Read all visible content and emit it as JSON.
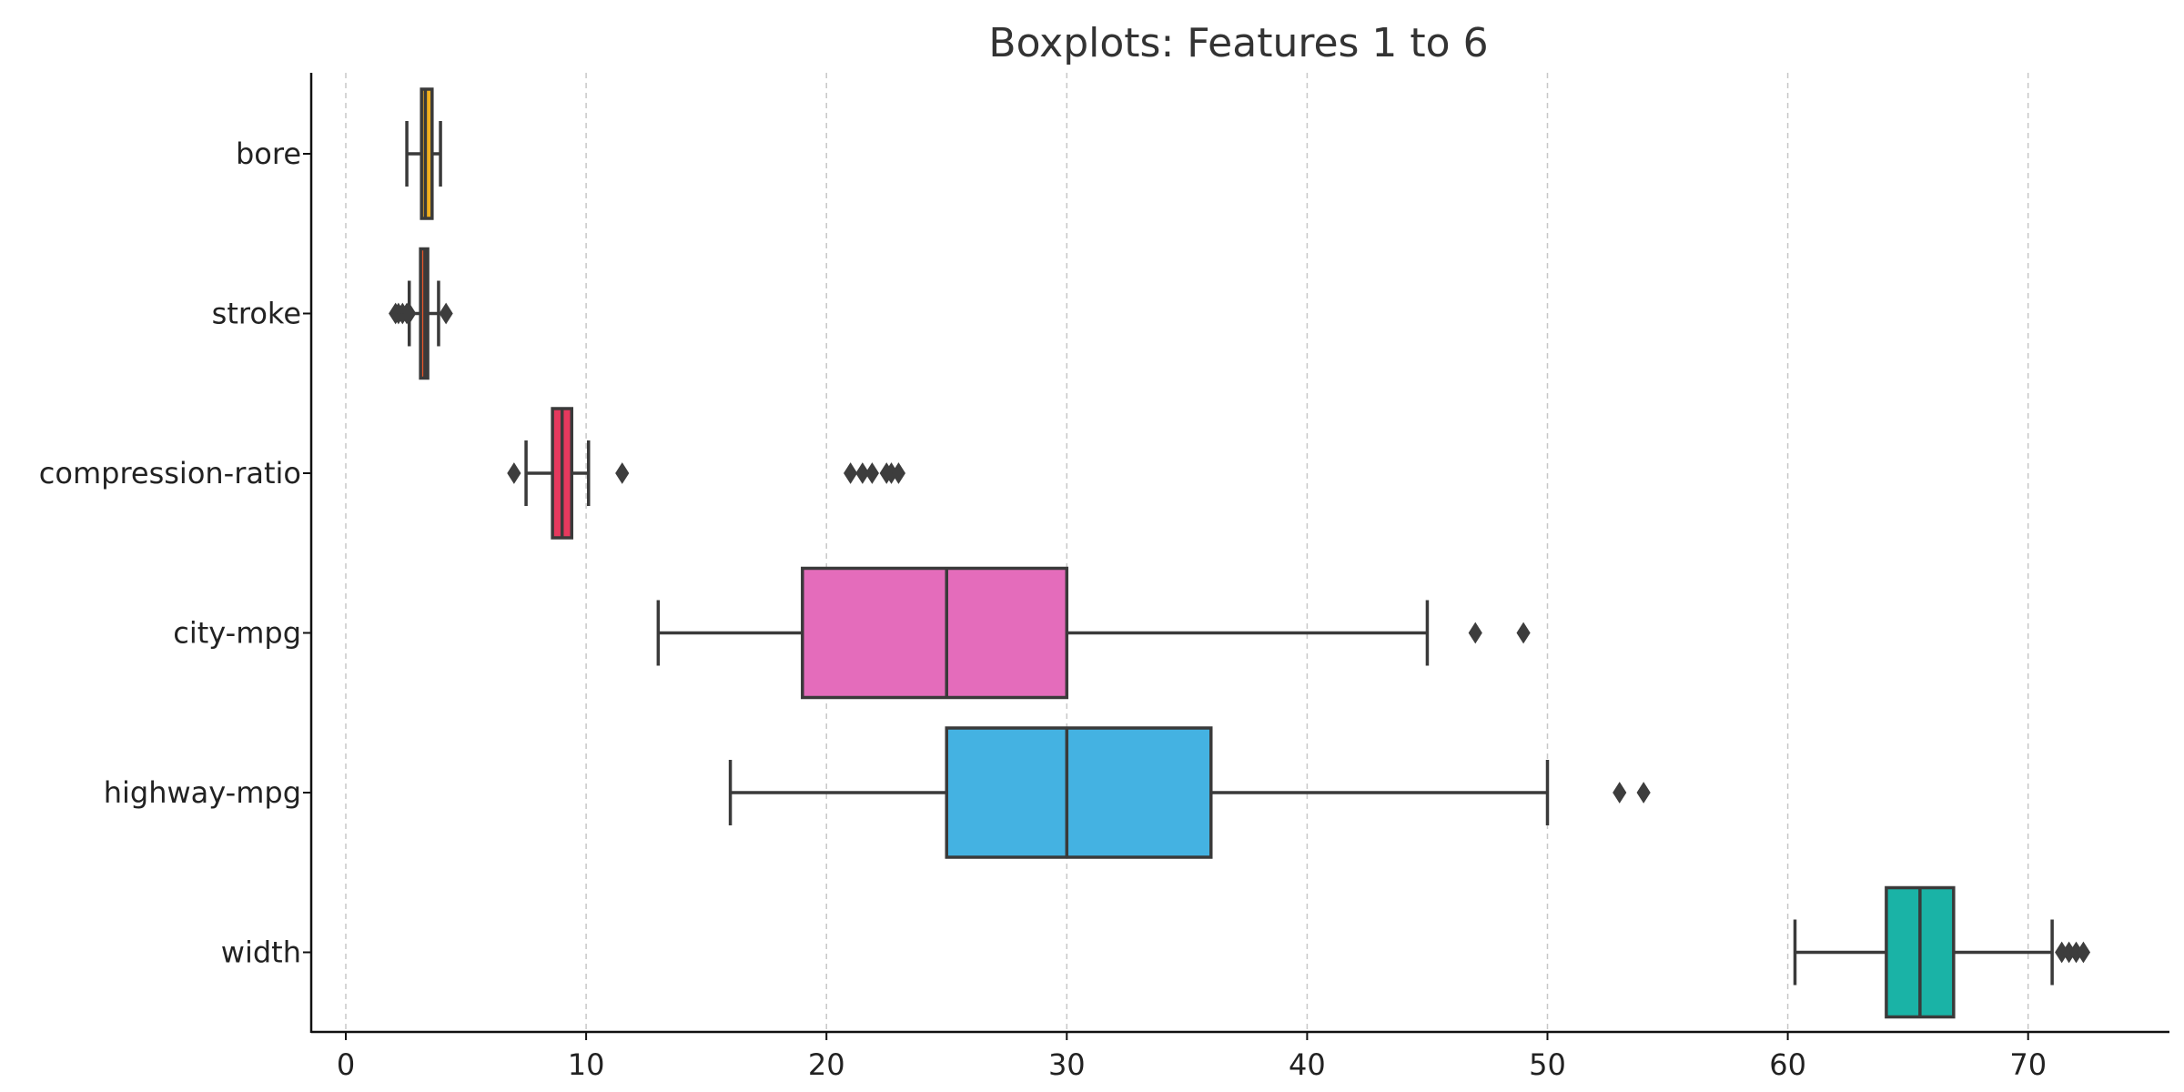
{
  "chart_data": {
    "type": "boxplot",
    "title": "Boxplots: Features 1 to 6",
    "xlabel": "",
    "ylabel": "",
    "xlim": [
      -1.4,
      75.8
    ],
    "xticks": [
      0,
      10,
      20,
      30,
      40,
      50,
      60,
      70
    ],
    "grid": "x-dashed",
    "categories": [
      "bore",
      "stroke",
      "compression-ratio",
      "city-mpg",
      "highway-mpg",
      "width"
    ],
    "boxes": [
      {
        "name": "bore",
        "whisker_low": 2.54,
        "q1": 3.15,
        "median": 3.31,
        "q3": 3.59,
        "whisker_high": 3.94,
        "outliers": [],
        "color": "#F2B01E"
      },
      {
        "name": "stroke",
        "whisker_low": 2.64,
        "q1": 3.11,
        "median": 3.29,
        "q3": 3.41,
        "whisker_high": 3.86,
        "outliers": [
          2.07,
          2.19,
          2.36,
          2.54,
          2.64,
          4.17
        ],
        "color": "#E8562A"
      },
      {
        "name": "compression-ratio",
        "whisker_low": 7.5,
        "q1": 8.6,
        "median": 9.0,
        "q3": 9.4,
        "whisker_high": 10.1,
        "outliers": [
          7.0,
          11.5,
          21.0,
          21.5,
          21.9,
          22.5,
          22.7,
          23.0
        ],
        "color": "#E6395E"
      },
      {
        "name": "city-mpg",
        "whisker_low": 13,
        "q1": 19,
        "median": 25,
        "q3": 30,
        "whisker_high": 45,
        "outliers": [
          47,
          49
        ],
        "color": "#E46CBB"
      },
      {
        "name": "highway-mpg",
        "whisker_low": 16,
        "q1": 25,
        "median": 30,
        "q3": 36,
        "whisker_high": 50,
        "outliers": [
          53,
          54
        ],
        "color": "#44B2E2"
      },
      {
        "name": "width",
        "whisker_low": 60.3,
        "q1": 64.1,
        "median": 65.5,
        "q3": 66.9,
        "whisker_high": 71.0,
        "outliers": [
          71.4,
          71.7,
          72.0,
          72.3
        ],
        "color": "#1AB3A6"
      }
    ]
  }
}
